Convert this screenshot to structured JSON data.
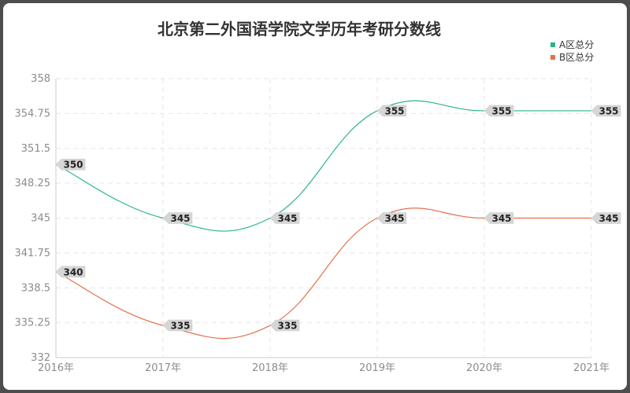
{
  "chart_data": {
    "type": "line",
    "title": "北京第二外国语学院文学历年考研分数线",
    "categories": [
      "2016年",
      "2017年",
      "2018年",
      "2019年",
      "2020年",
      "2021年"
    ],
    "series": [
      {
        "name": "A区总分",
        "color": "#2ab58a",
        "values": [
          350,
          345,
          345,
          355,
          355,
          355
        ]
      },
      {
        "name": "B区总分",
        "color": "#e2714a",
        "values": [
          340,
          335,
          335,
          345,
          345,
          345
        ]
      }
    ],
    "ylim": [
      332,
      358
    ],
    "yticks": [
      "332",
      "335.25",
      "338.5",
      "341.75",
      "345",
      "348.25",
      "351.5",
      "354.75",
      "358"
    ],
    "grid": true,
    "legend": "top-right"
  }
}
